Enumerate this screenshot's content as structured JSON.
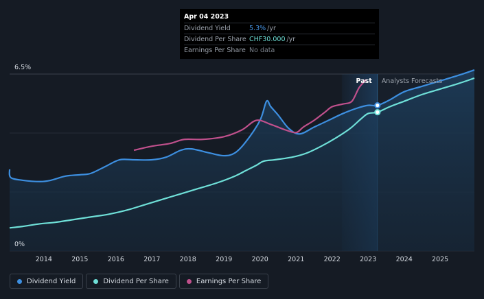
{
  "tooltip": {
    "date": "Apr 04 2023",
    "rows": [
      {
        "label": "Dividend Yield",
        "value": "5.3%",
        "unit": "/yr",
        "color": "#4a9cf0"
      },
      {
        "label": "Dividend Per Share",
        "value": "CHF30.000",
        "unit": "/yr",
        "color": "#6fe0d8"
      },
      {
        "label": "Earnings Per Share",
        "value": "No data",
        "unit": "",
        "color": "#7a818b"
      }
    ]
  },
  "legend": [
    {
      "label": "Dividend Yield",
      "color": "#3d8fe0"
    },
    {
      "label": "Dividend Per Share",
      "color": "#6fe0d8"
    },
    {
      "label": "Earnings Per Share",
      "color": "#c0508c"
    }
  ],
  "colors": {
    "background": "#151b24",
    "yield_line": "#3d8fe0",
    "dps_line": "#6fe0d8",
    "eps_line": "#c0508c",
    "past_band": "#1d3d5e"
  },
  "chart_data": {
    "type": "line",
    "title": "",
    "past_label": "Past",
    "forecast_label": "Analysts Forecasts",
    "x_ticks": [
      2014,
      2015,
      2016,
      2017,
      2018,
      2019,
      2020,
      2021,
      2022,
      2023,
      2024,
      2025
    ],
    "x_tick_labels": [
      "2014",
      "2015",
      "2016",
      "2017",
      "2018",
      "2019",
      "2020",
      "2021",
      "2022",
      "2023",
      "2024",
      "2025"
    ],
    "xlim": [
      2013.05,
      2025.95
    ],
    "ylim": [
      0,
      6.5
    ],
    "y_ticks": [
      0,
      6.5
    ],
    "y_tick_labels": [
      "0%",
      "6.5%"
    ],
    "past_end": 2023.26,
    "past_band_start": 2022.27,
    "highlight_x": 2023.26,
    "series": [
      {
        "name": "Dividend Yield",
        "x": [
          2013.05,
          2013.08,
          2013.4,
          2013.9,
          2014.2,
          2014.6,
          2015.0,
          2015.3,
          2015.7,
          2016.1,
          2016.5,
          2017.0,
          2017.4,
          2017.8,
          2018.1,
          2018.6,
          2019.0,
          2019.3,
          2019.6,
          2020.0,
          2020.18,
          2020.3,
          2020.5,
          2020.8,
          2021.1,
          2021.5,
          2021.9,
          2022.3,
          2022.7,
          2023.0,
          2023.26,
          2023.6,
          2024.0,
          2024.5,
          2025.0,
          2025.5,
          2025.95
        ],
        "values": [
          3.0,
          2.7,
          2.6,
          2.55,
          2.6,
          2.75,
          2.8,
          2.85,
          3.1,
          3.35,
          3.35,
          3.35,
          3.45,
          3.7,
          3.75,
          3.6,
          3.5,
          3.6,
          4.0,
          4.8,
          5.5,
          5.3,
          5.0,
          4.5,
          4.3,
          4.55,
          4.8,
          5.05,
          5.25,
          5.35,
          5.35,
          5.55,
          5.85,
          6.05,
          6.25,
          6.45,
          6.65
        ]
      },
      {
        "name": "Dividend Per Share",
        "x": [
          2013.05,
          2013.4,
          2013.9,
          2014.3,
          2014.8,
          2015.3,
          2015.8,
          2016.3,
          2016.8,
          2017.3,
          2017.8,
          2018.3,
          2018.8,
          2019.3,
          2019.6,
          2019.9,
          2020.1,
          2020.4,
          2020.9,
          2021.3,
          2021.7,
          2022.1,
          2022.5,
          2022.8,
          2023.0,
          2023.26,
          2023.6,
          2024.0,
          2024.5,
          2025.0,
          2025.5,
          2025.95
        ],
        "values": [
          0.85,
          0.9,
          1.0,
          1.05,
          1.15,
          1.25,
          1.35,
          1.5,
          1.7,
          1.9,
          2.1,
          2.3,
          2.5,
          2.75,
          2.95,
          3.15,
          3.3,
          3.35,
          3.45,
          3.6,
          3.85,
          4.15,
          4.5,
          4.85,
          5.05,
          5.1,
          5.3,
          5.5,
          5.75,
          5.95,
          6.15,
          6.35
        ]
      },
      {
        "name": "Earnings Per Share",
        "x": [
          2016.5,
          2017.0,
          2017.5,
          2017.9,
          2018.4,
          2019.0,
          2019.5,
          2019.9,
          2020.3,
          2020.7,
          2021.0,
          2021.2,
          2021.5,
          2021.8,
          2022.0,
          2022.3,
          2022.55,
          2022.75,
          2022.95
        ],
        "values": [
          3.7,
          3.85,
          3.95,
          4.1,
          4.1,
          4.2,
          4.45,
          4.8,
          4.65,
          4.45,
          4.35,
          4.55,
          4.8,
          5.1,
          5.3,
          5.4,
          5.5,
          6.0,
          6.3
        ]
      }
    ]
  }
}
